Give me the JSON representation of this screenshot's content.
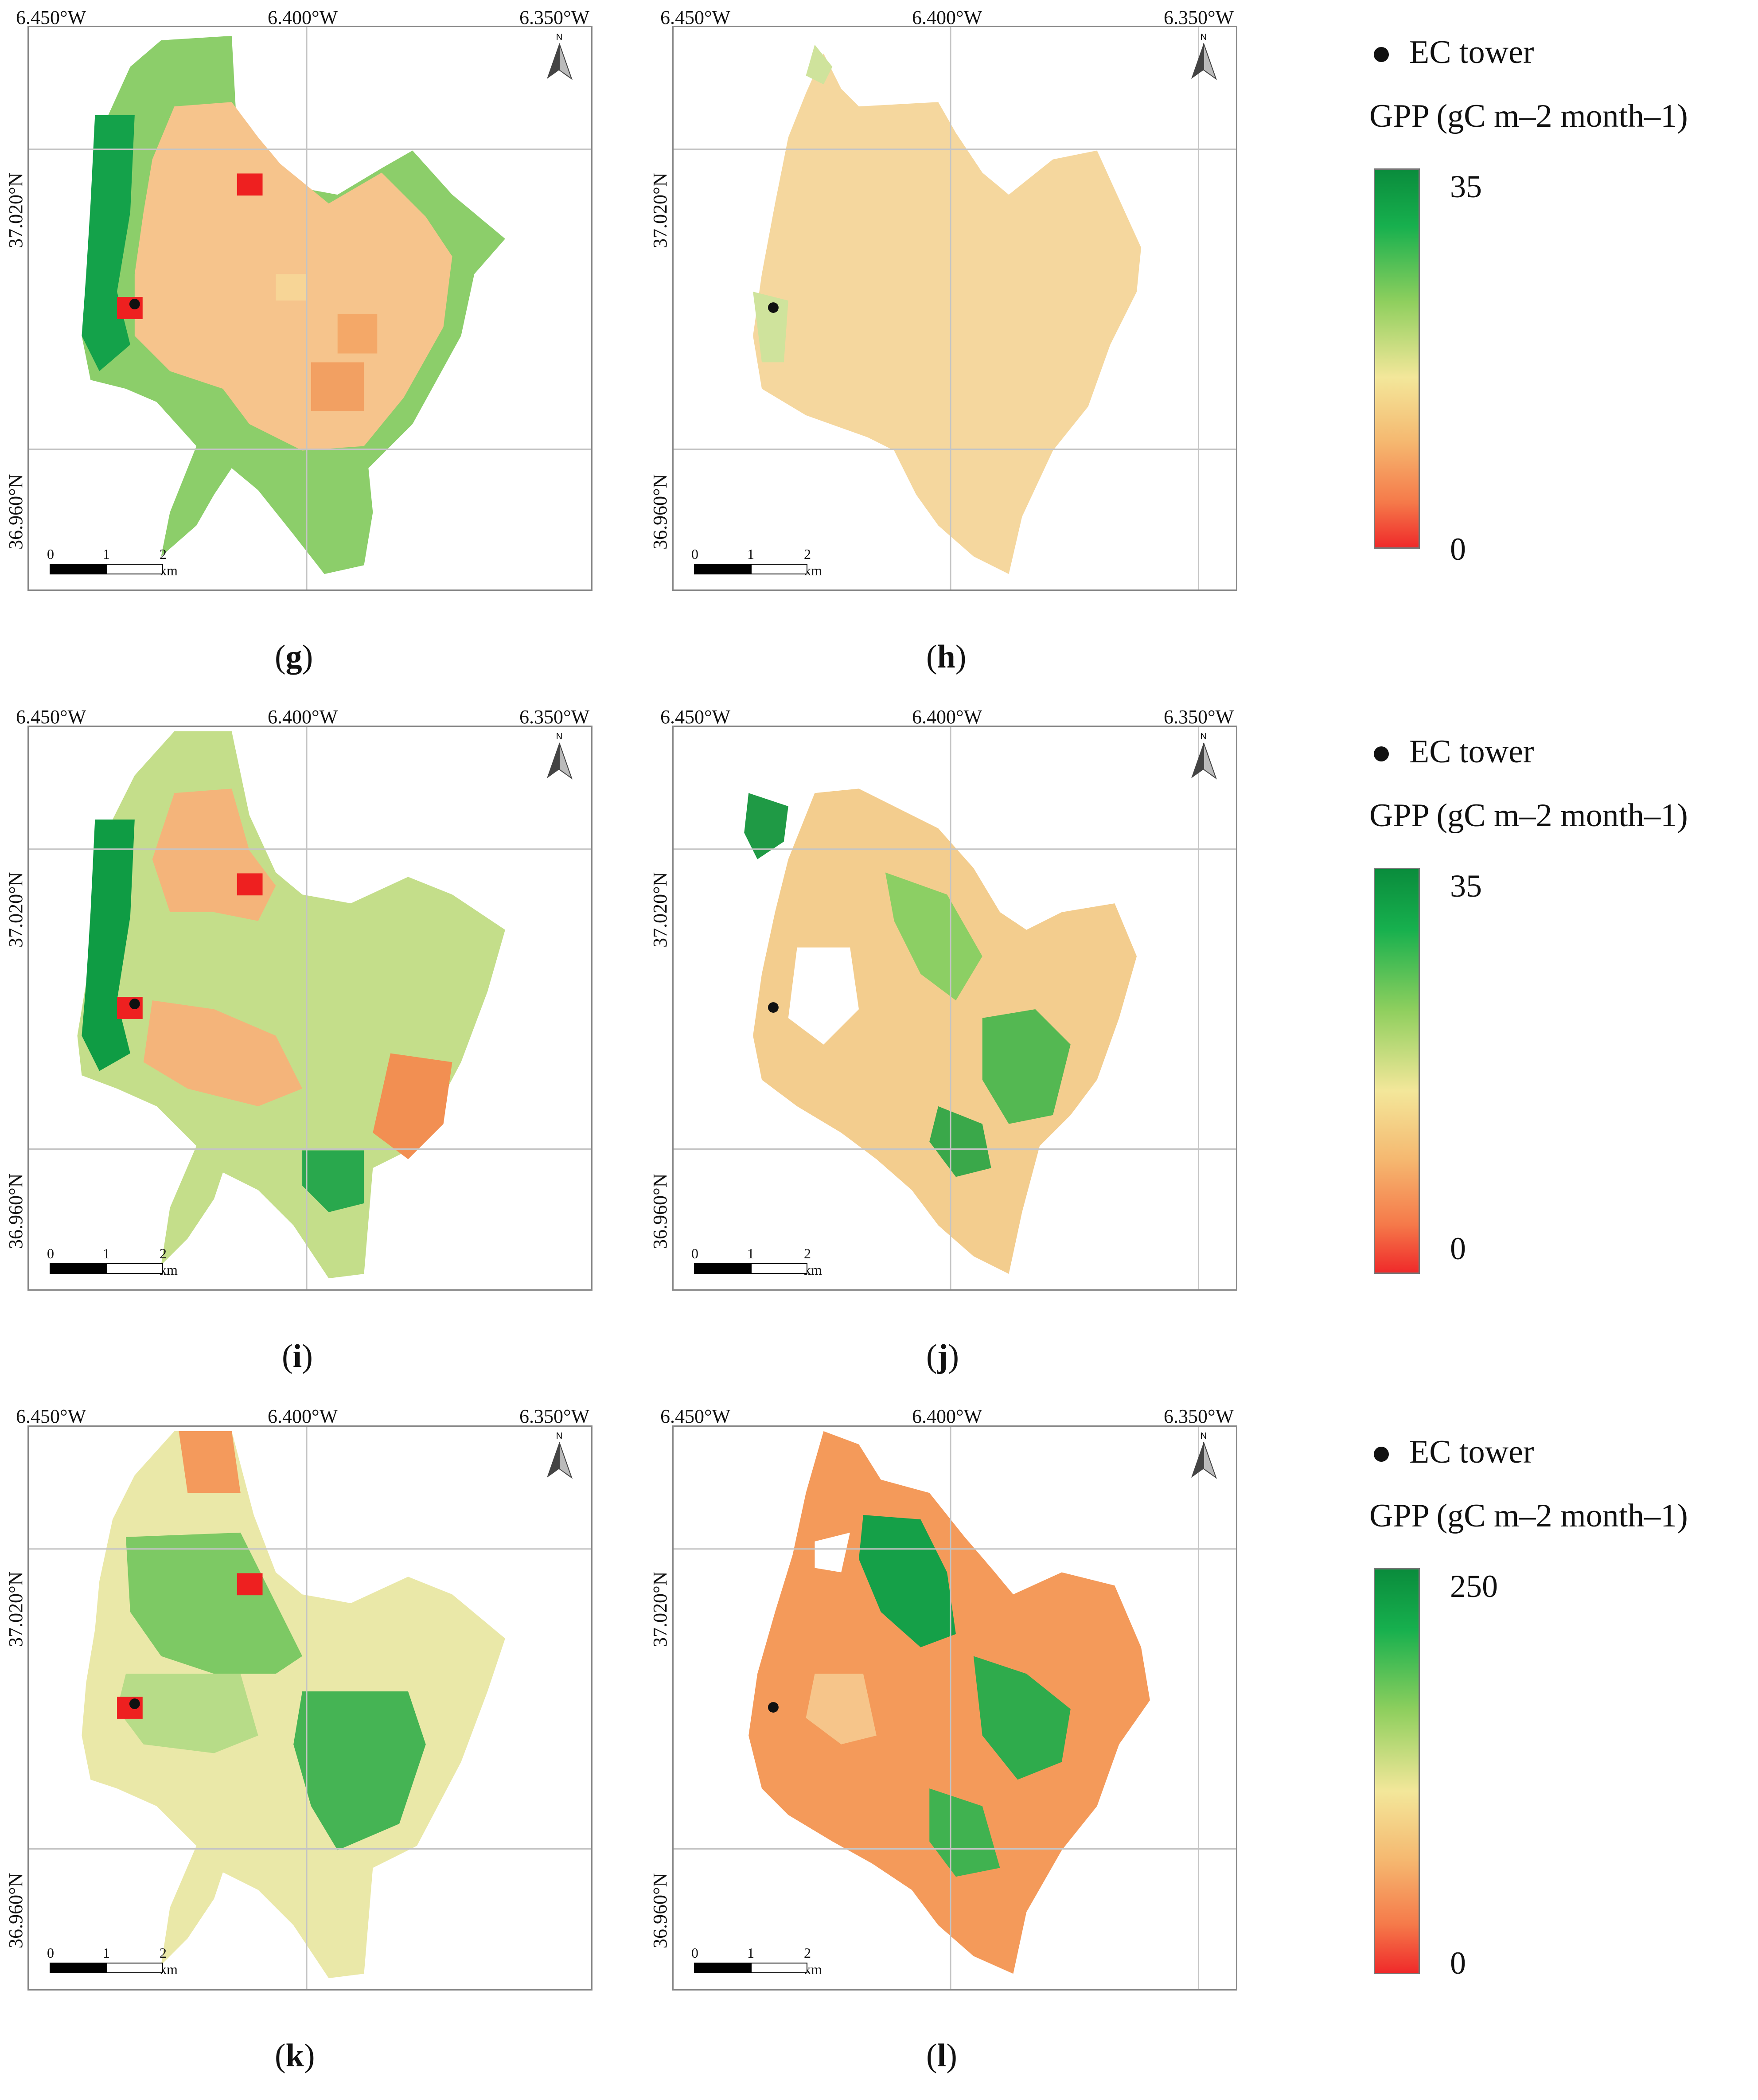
{
  "panels": [
    {
      "id": "g",
      "label": "g",
      "tower": true
    },
    {
      "id": "h",
      "label": "h",
      "tower": true
    },
    {
      "id": "i",
      "label": "i",
      "tower": true
    },
    {
      "id": "j",
      "label": "j",
      "tower": true
    },
    {
      "id": "k",
      "label": "k",
      "tower": true
    },
    {
      "id": "l",
      "label": "l",
      "tower": true
    }
  ],
  "axes": {
    "lon_left": "6.450°W",
    "lon_mid": "6.400°W",
    "lon_right": "6.350°W",
    "lat_upper": "37.020°N",
    "lat_lower": "36.960°N",
    "north": "N"
  },
  "scalebar": {
    "zero": "0",
    "one": "1",
    "two": "2 km"
  },
  "legends": [
    {
      "tower_label": "EC tower",
      "title": "GPP (gC m–2 month–1)",
      "max": "35",
      "min": "0"
    },
    {
      "tower_label": "EC tower",
      "title": "GPP (gC m–2 month–1)",
      "max": "35",
      "min": "0"
    },
    {
      "tower_label": "EC tower",
      "title": "GPP (gC m–2 month–1)",
      "max": "250",
      "min": "0"
    }
  ],
  "colors": {
    "green_dark": "#0a8c3c",
    "green": "#4dbb5a",
    "green_light": "#a8d978",
    "yellow": "#f3e49c",
    "orange_light": "#f6c689",
    "orange": "#f49a5c",
    "red": "#ee2b2b"
  }
}
